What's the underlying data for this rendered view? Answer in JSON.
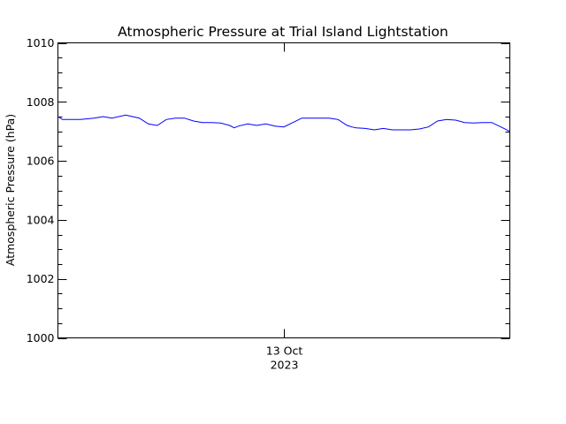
{
  "chart_data": {
    "type": "line",
    "title": "Atmospheric Pressure at Trial Island Lightstation",
    "ylabel": "Atmospheric Pressure (hPa)",
    "xlabel": "",
    "x_tick_labels": [
      {
        "value": 0.5,
        "line1": "13 Oct",
        "line2": "2023"
      }
    ],
    "xlim": [
      0,
      1
    ],
    "ylim": [
      1000,
      1010
    ],
    "y_ticks": [
      1000,
      1002,
      1004,
      1006,
      1008,
      1010
    ],
    "y_tick_labels": [
      "1000",
      "1002",
      "1004",
      "1006",
      "1008",
      "1010"
    ],
    "y_minor_step": 0.5,
    "grid": false,
    "legend": "none",
    "series": [
      {
        "color": "#0000ff",
        "x": [
          0.0,
          0.01,
          0.03,
          0.05,
          0.08,
          0.1,
          0.12,
          0.15,
          0.18,
          0.2,
          0.22,
          0.24,
          0.26,
          0.28,
          0.3,
          0.32,
          0.34,
          0.36,
          0.38,
          0.39,
          0.4,
          0.42,
          0.44,
          0.46,
          0.48,
          0.5,
          0.52,
          0.54,
          0.56,
          0.58,
          0.6,
          0.62,
          0.64,
          0.65,
          0.66,
          0.68,
          0.7,
          0.72,
          0.74,
          0.76,
          0.78,
          0.8,
          0.82,
          0.84,
          0.86,
          0.88,
          0.9,
          0.92,
          0.94,
          0.96,
          0.98,
          1.0
        ],
        "y": [
          1007.5,
          1007.4,
          1007.4,
          1007.4,
          1007.45,
          1007.5,
          1007.45,
          1007.55,
          1007.45,
          1007.25,
          1007.2,
          1007.4,
          1007.45,
          1007.45,
          1007.35,
          1007.3,
          1007.3,
          1007.28,
          1007.2,
          1007.12,
          1007.18,
          1007.25,
          1007.2,
          1007.25,
          1007.18,
          1007.15,
          1007.3,
          1007.45,
          1007.45,
          1007.45,
          1007.45,
          1007.4,
          1007.2,
          1007.15,
          1007.12,
          1007.1,
          1007.05,
          1007.1,
          1007.05,
          1007.05,
          1007.05,
          1007.08,
          1007.15,
          1007.35,
          1007.4,
          1007.38,
          1007.3,
          1007.28,
          1007.3,
          1007.3,
          1007.15,
          1007.0
        ]
      }
    ]
  }
}
